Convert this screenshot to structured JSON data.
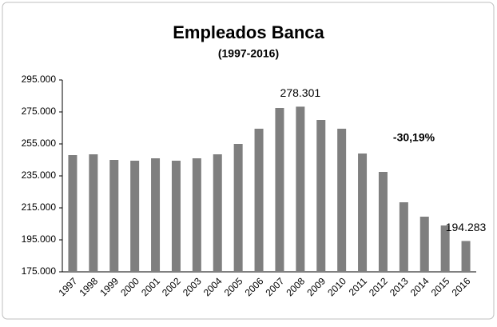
{
  "chart_data": {
    "type": "bar",
    "title": "Empleados Banca",
    "subtitle": "(1997-2016)",
    "categories": [
      "1997",
      "1998",
      "1999",
      "2000",
      "2001",
      "2002",
      "2003",
      "2004",
      "2005",
      "2006",
      "2007",
      "2008",
      "2009",
      "2010",
      "2011",
      "2012",
      "2013",
      "2014",
      "2015",
      "2016"
    ],
    "values": [
      248000,
      248500,
      245000,
      244500,
      246000,
      244500,
      246000,
      248500,
      255000,
      264500,
      277500,
      278301,
      270000,
      264500,
      249000,
      237500,
      218500,
      209500,
      204000,
      194283
    ],
    "value_labels": [
      null,
      null,
      null,
      null,
      null,
      null,
      null,
      null,
      null,
      null,
      null,
      "278.301",
      null,
      null,
      null,
      null,
      null,
      null,
      null,
      "194.283"
    ],
    "color": "#7f7f7f",
    "ylim": [
      175000,
      295000
    ],
    "yticks": [
      {
        "value": 175000,
        "label": "175.000"
      },
      {
        "value": 195000,
        "label": "195.000"
      },
      {
        "value": 215000,
        "label": "215.000"
      },
      {
        "value": 235000,
        "label": "235.000"
      },
      {
        "value": 255000,
        "label": "255.000"
      },
      {
        "value": 275000,
        "label": "275.000"
      },
      {
        "value": 295000,
        "label": "295.000"
      }
    ],
    "annotation": "-30,19%",
    "annotation_color": "#c00000"
  }
}
